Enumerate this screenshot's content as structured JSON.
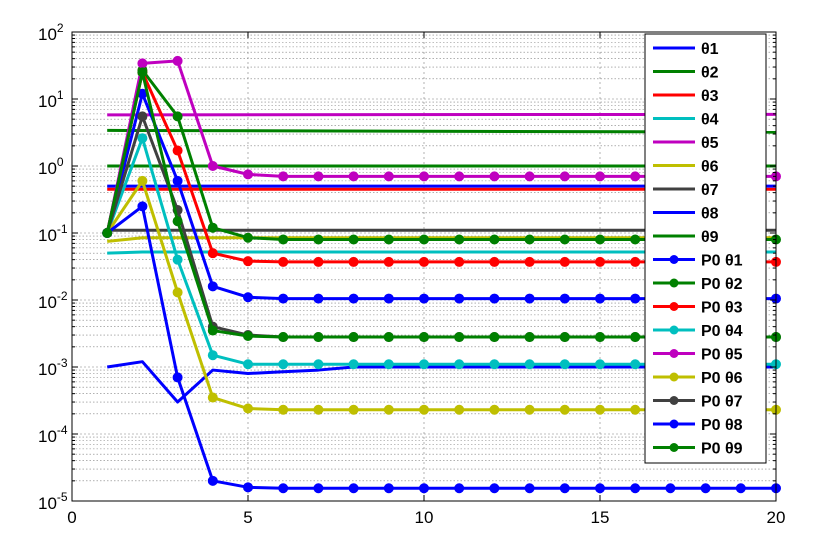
{
  "chart_data": {
    "type": "line",
    "xlim": [
      0,
      20
    ],
    "ylim": [
      1e-05,
      100
    ],
    "yscale": "log",
    "grid": true,
    "legend_position": "top-right",
    "x_ticks": [
      "0",
      "5",
      "10",
      "15",
      "20"
    ],
    "y_ticks": [
      {
        "base": "10",
        "exp": "-5"
      },
      {
        "base": "10",
        "exp": "-4"
      },
      {
        "base": "10",
        "exp": "-3"
      },
      {
        "base": "10",
        "exp": "-2"
      },
      {
        "base": "10",
        "exp": "-1"
      },
      {
        "base": "10",
        "exp": "0"
      },
      {
        "base": "10",
        "exp": "1"
      },
      {
        "base": "10",
        "exp": "2"
      }
    ],
    "series": [
      {
        "name": "θ1",
        "color": "#0000ff",
        "markers": false,
        "x": [
          1,
          2,
          3,
          4,
          5,
          6,
          7,
          8,
          20
        ],
        "y": [
          0.001,
          0.0012,
          0.0003,
          0.0009,
          0.0008,
          0.00085,
          0.0009,
          0.001,
          0.001
        ]
      },
      {
        "name": "θ2",
        "color": "#008000",
        "markers": false,
        "x": [
          1,
          20
        ],
        "y": [
          3.4,
          3.2
        ]
      },
      {
        "name": "θ3",
        "color": "#ff0000",
        "markers": false,
        "x": [
          1,
          20
        ],
        "y": [
          0.45,
          0.45
        ]
      },
      {
        "name": "θ4",
        "color": "#00bfbf",
        "markers": false,
        "x": [
          1,
          2,
          20
        ],
        "y": [
          0.05,
          0.052,
          0.052
        ]
      },
      {
        "name": "θ5",
        "color": "#bf00bf",
        "markers": false,
        "x": [
          1,
          20
        ],
        "y": [
          5.8,
          5.9
        ]
      },
      {
        "name": "θ6",
        "color": "#bfbf00",
        "markers": false,
        "x": [
          1,
          2,
          20
        ],
        "y": [
          0.075,
          0.085,
          0.085
        ]
      },
      {
        "name": "θ7",
        "color": "#404040",
        "markers": false,
        "x": [
          1,
          20
        ],
        "y": [
          0.11,
          0.11
        ]
      },
      {
        "name": "θ8",
        "color": "#0000ff",
        "markers": false,
        "x": [
          1,
          20
        ],
        "y": [
          0.5,
          0.5
        ]
      },
      {
        "name": "θ9",
        "color": "#008000",
        "markers": false,
        "x": [
          1,
          20
        ],
        "y": [
          1.0,
          1.0
        ]
      },
      {
        "name": "P0 θ1",
        "color": "#0000ff",
        "markers": true,
        "x": [
          1,
          2,
          3,
          4,
          5,
          6,
          7,
          8,
          9,
          10,
          11,
          12,
          13,
          14,
          15,
          16,
          17,
          18,
          19,
          20
        ],
        "y": [
          0.1,
          12,
          0.6,
          0.016,
          0.011,
          0.0105,
          0.0105,
          0.0105,
          0.0105,
          0.0105,
          0.0105,
          0.0105,
          0.0105,
          0.0105,
          0.0105,
          0.0105,
          0.0105,
          0.0105,
          0.0105,
          0.0105
        ]
      },
      {
        "name": "P0 θ2",
        "color": "#008000",
        "markers": true,
        "x": [
          1,
          2,
          3,
          4,
          5,
          6,
          7,
          8,
          9,
          10,
          11,
          12,
          13,
          14,
          15,
          16,
          17,
          18,
          19,
          20
        ],
        "y": [
          0.1,
          27,
          5.5,
          0.12,
          0.085,
          0.08,
          0.08,
          0.08,
          0.08,
          0.08,
          0.08,
          0.08,
          0.08,
          0.08,
          0.08,
          0.08,
          0.08,
          0.08,
          0.08,
          0.08
        ]
      },
      {
        "name": "P0 θ3",
        "color": "#ff0000",
        "markers": true,
        "x": [
          1,
          2,
          3,
          4,
          5,
          6,
          7,
          8,
          9,
          10,
          11,
          12,
          13,
          14,
          15,
          16,
          17,
          18,
          19,
          20
        ],
        "y": [
          0.1,
          25,
          1.7,
          0.05,
          0.038,
          0.037,
          0.037,
          0.037,
          0.037,
          0.037,
          0.037,
          0.037,
          0.037,
          0.037,
          0.037,
          0.037,
          0.037,
          0.037,
          0.037,
          0.037
        ]
      },
      {
        "name": "P0 θ4",
        "color": "#00bfbf",
        "markers": true,
        "x": [
          1,
          2,
          3,
          4,
          5,
          6,
          7,
          8,
          9,
          10,
          11,
          12,
          13,
          14,
          15,
          16,
          17,
          18,
          19,
          20
        ],
        "y": [
          0.1,
          2.6,
          0.04,
          0.0015,
          0.0011,
          0.0011,
          0.0011,
          0.0011,
          0.0011,
          0.0011,
          0.0011,
          0.0011,
          0.0011,
          0.0011,
          0.0011,
          0.0011,
          0.0011,
          0.0011,
          0.0011,
          0.0011
        ]
      },
      {
        "name": "P0 θ5",
        "color": "#bf00bf",
        "markers": true,
        "x": [
          1,
          2,
          3,
          4,
          5,
          6,
          7,
          8,
          9,
          10,
          11,
          12,
          13,
          14,
          15,
          16,
          17,
          18,
          19,
          20
        ],
        "y": [
          0.1,
          34,
          37,
          1.0,
          0.75,
          0.7,
          0.7,
          0.7,
          0.7,
          0.7,
          0.7,
          0.7,
          0.7,
          0.7,
          0.7,
          0.7,
          0.7,
          0.7,
          0.7,
          0.7
        ]
      },
      {
        "name": "P0 θ6",
        "color": "#bfbf00",
        "markers": true,
        "x": [
          1,
          2,
          3,
          4,
          5,
          6,
          7,
          8,
          9,
          10,
          11,
          12,
          13,
          14,
          15,
          16,
          17,
          18,
          19,
          20
        ],
        "y": [
          0.1,
          0.6,
          0.013,
          0.00035,
          0.00024,
          0.00023,
          0.00023,
          0.00023,
          0.00023,
          0.00023,
          0.00023,
          0.00023,
          0.00023,
          0.00023,
          0.00023,
          0.00023,
          0.00023,
          0.00023,
          0.00023,
          0.00023
        ]
      },
      {
        "name": "P0 θ7",
        "color": "#404040",
        "markers": true,
        "x": [
          1,
          2,
          3,
          4,
          5,
          6,
          7,
          8,
          9,
          10,
          11,
          12,
          13,
          14,
          15,
          16,
          17,
          18,
          19,
          20
        ],
        "y": [
          0.1,
          5.5,
          0.22,
          0.004,
          0.003,
          0.0028,
          0.0028,
          0.0028,
          0.0028,
          0.0028,
          0.0028,
          0.0028,
          0.0028,
          0.0028,
          0.0028,
          0.0028,
          0.0028,
          0.0028,
          0.0028,
          0.0028
        ]
      },
      {
        "name": "P0 θ8",
        "color": "#0000ff",
        "markers": true,
        "x": [
          1,
          2,
          3,
          4,
          5,
          6,
          7,
          8,
          9,
          10,
          11,
          12,
          13,
          14,
          15,
          16,
          17,
          18,
          19,
          20
        ],
        "y": [
          0.1,
          0.25,
          0.0007,
          2e-05,
          1.6e-05,
          1.55e-05,
          1.55e-05,
          1.55e-05,
          1.55e-05,
          1.55e-05,
          1.55e-05,
          1.55e-05,
          1.55e-05,
          1.55e-05,
          1.55e-05,
          1.55e-05,
          1.55e-05,
          1.55e-05,
          1.55e-05,
          1.55e-05
        ]
      },
      {
        "name": "P0 θ9",
        "color": "#008000",
        "markers": true,
        "x": [
          1,
          2,
          3,
          4,
          5,
          6,
          7,
          8,
          9,
          10,
          11,
          12,
          13,
          14,
          15,
          16,
          17,
          18,
          19,
          20
        ],
        "y": [
          0.1,
          25,
          0.15,
          0.0035,
          0.0029,
          0.0028,
          0.0028,
          0.0028,
          0.0028,
          0.0028,
          0.0028,
          0.0028,
          0.0028,
          0.0028,
          0.0028,
          0.0028,
          0.0028,
          0.0028,
          0.0028,
          0.0028
        ]
      }
    ]
  }
}
